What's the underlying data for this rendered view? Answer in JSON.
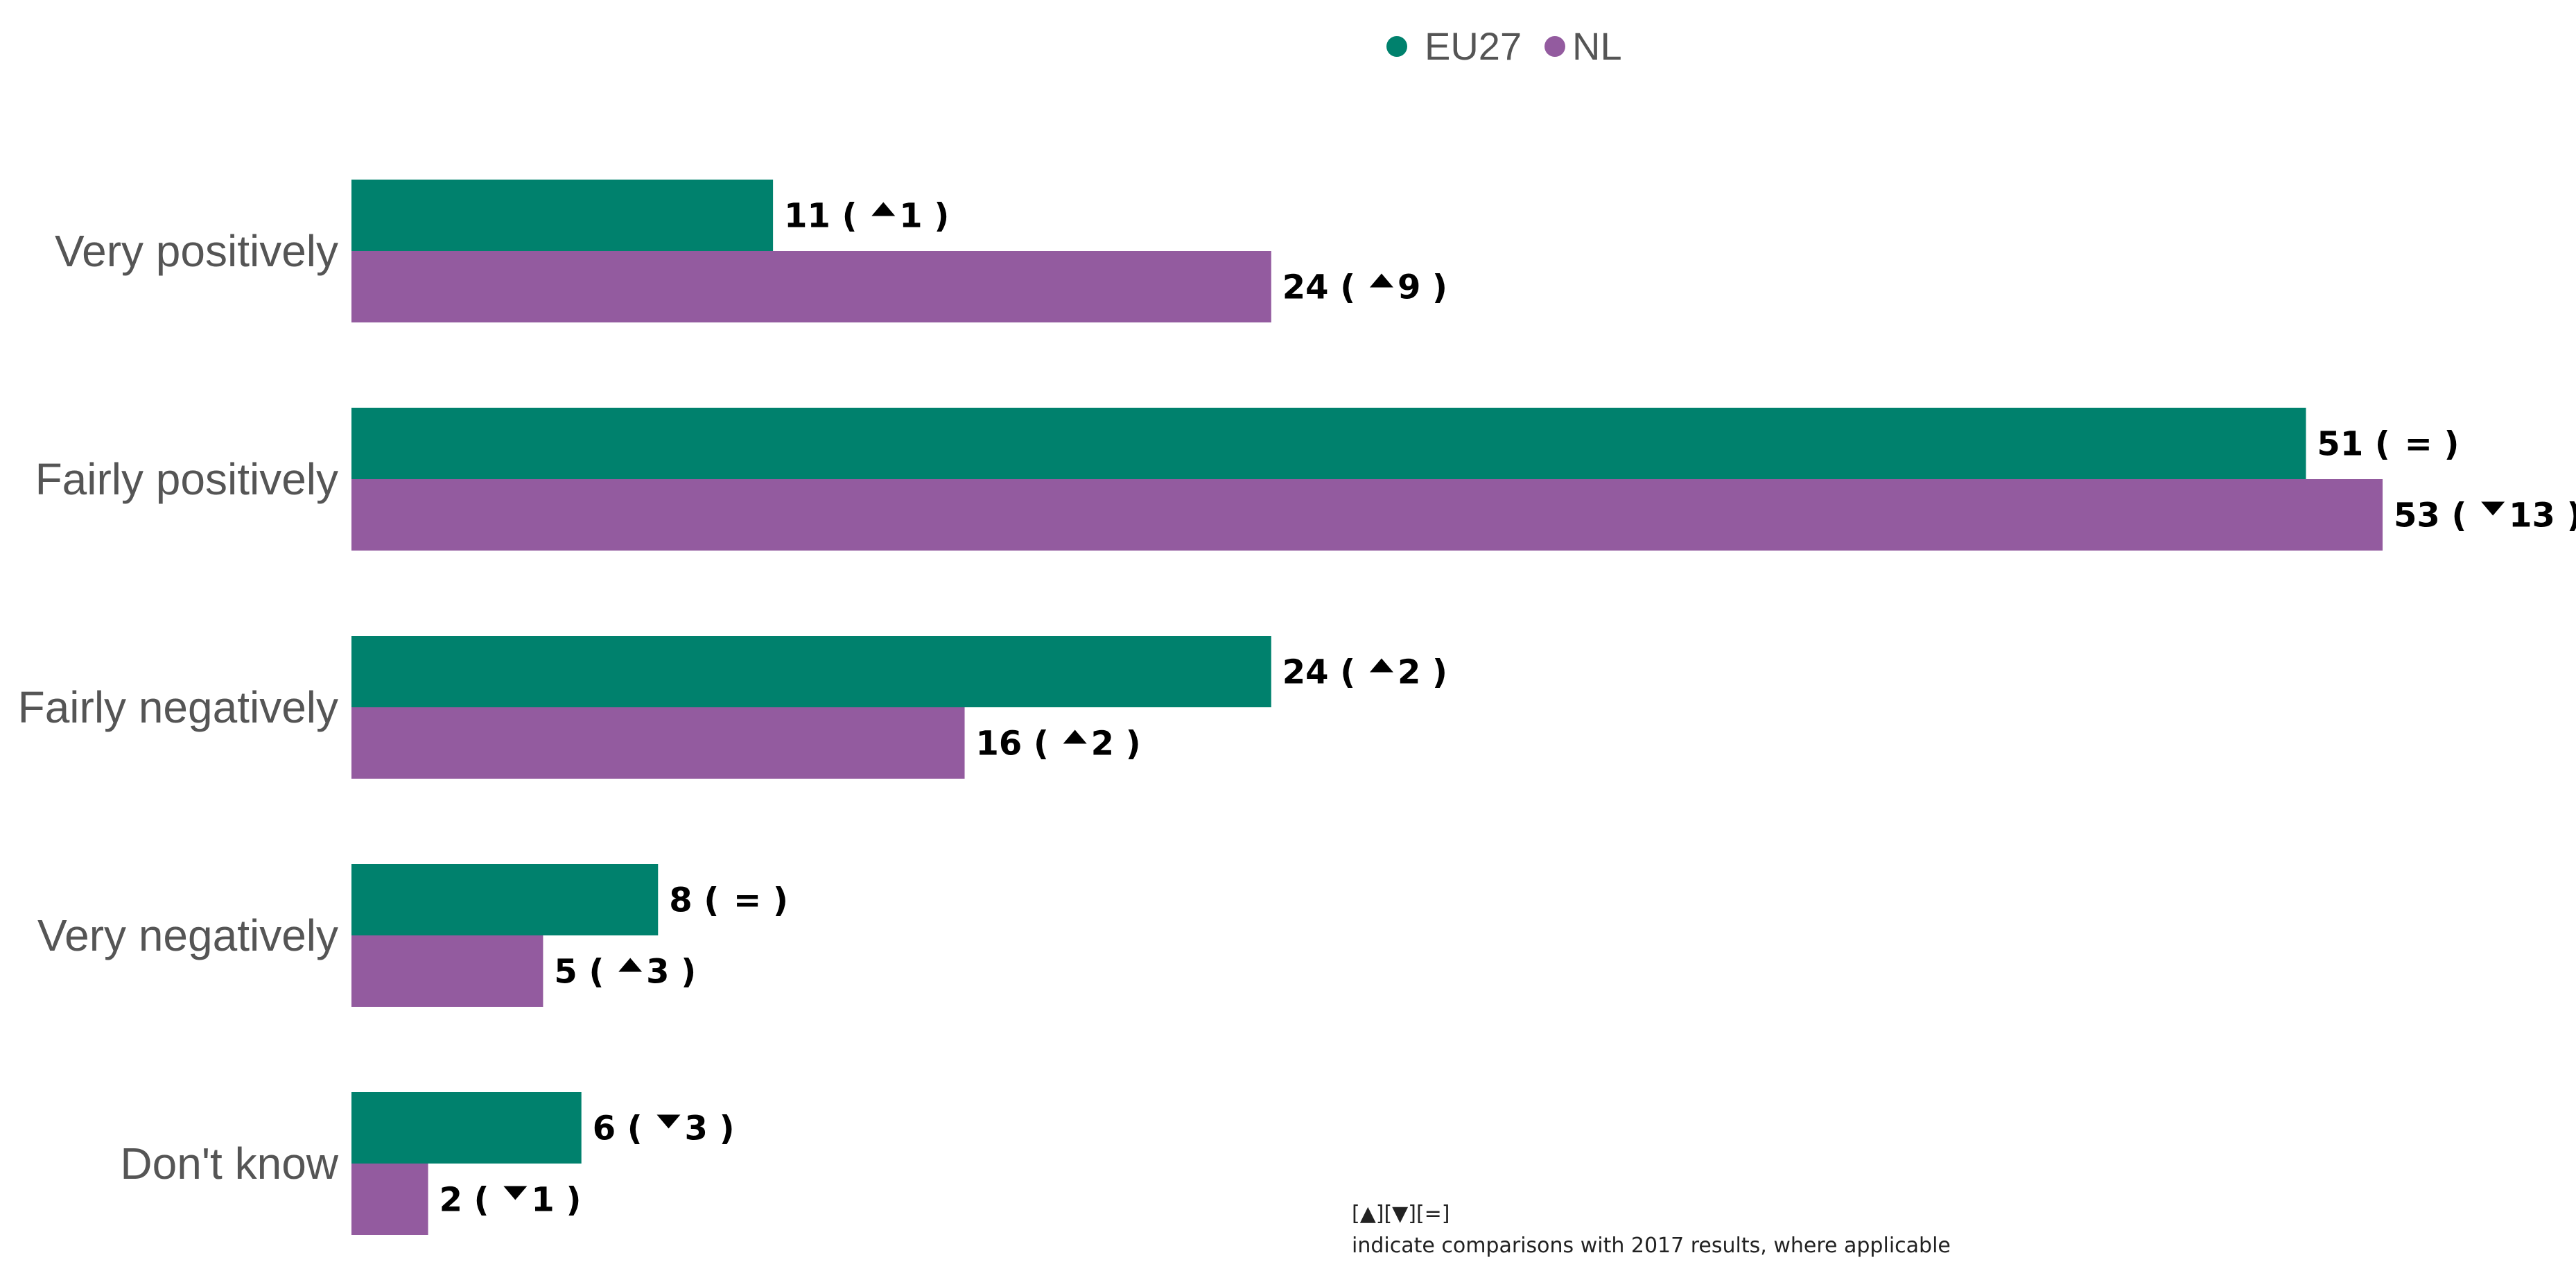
{
  "colors": {
    "EU27": "#00816D",
    "NL": "#935B9F"
  },
  "chart_data": {
    "type": "bar",
    "orientation": "horizontal",
    "categories": [
      "Very positively",
      "Fairly positively",
      "Fairly negatively",
      "Very negatively",
      "Don't know"
    ],
    "series": [
      {
        "name": "EU27",
        "values": [
          11,
          51,
          24,
          8,
          6
        ],
        "changes": [
          {
            "direction": "up",
            "value": "1"
          },
          {
            "direction": "equal",
            "value": "="
          },
          {
            "direction": "up",
            "value": "2"
          },
          {
            "direction": "equal",
            "value": "="
          },
          {
            "direction": "down",
            "value": "3"
          }
        ]
      },
      {
        "name": "NL",
        "values": [
          24,
          53,
          16,
          5,
          2
        ],
        "changes": [
          {
            "direction": "up",
            "value": "9"
          },
          {
            "direction": "down",
            "value": "13"
          },
          {
            "direction": "up",
            "value": "2"
          },
          {
            "direction": "up",
            "value": "3"
          },
          {
            "direction": "down",
            "value": "1"
          }
        ]
      }
    ],
    "xlim": [
      0,
      53
    ],
    "legend_position": "top-center",
    "grid": false
  },
  "footnote": {
    "symbols": "[▲][▼][=]",
    "text": "indicate comparisons with 2017 results, where applicable"
  }
}
